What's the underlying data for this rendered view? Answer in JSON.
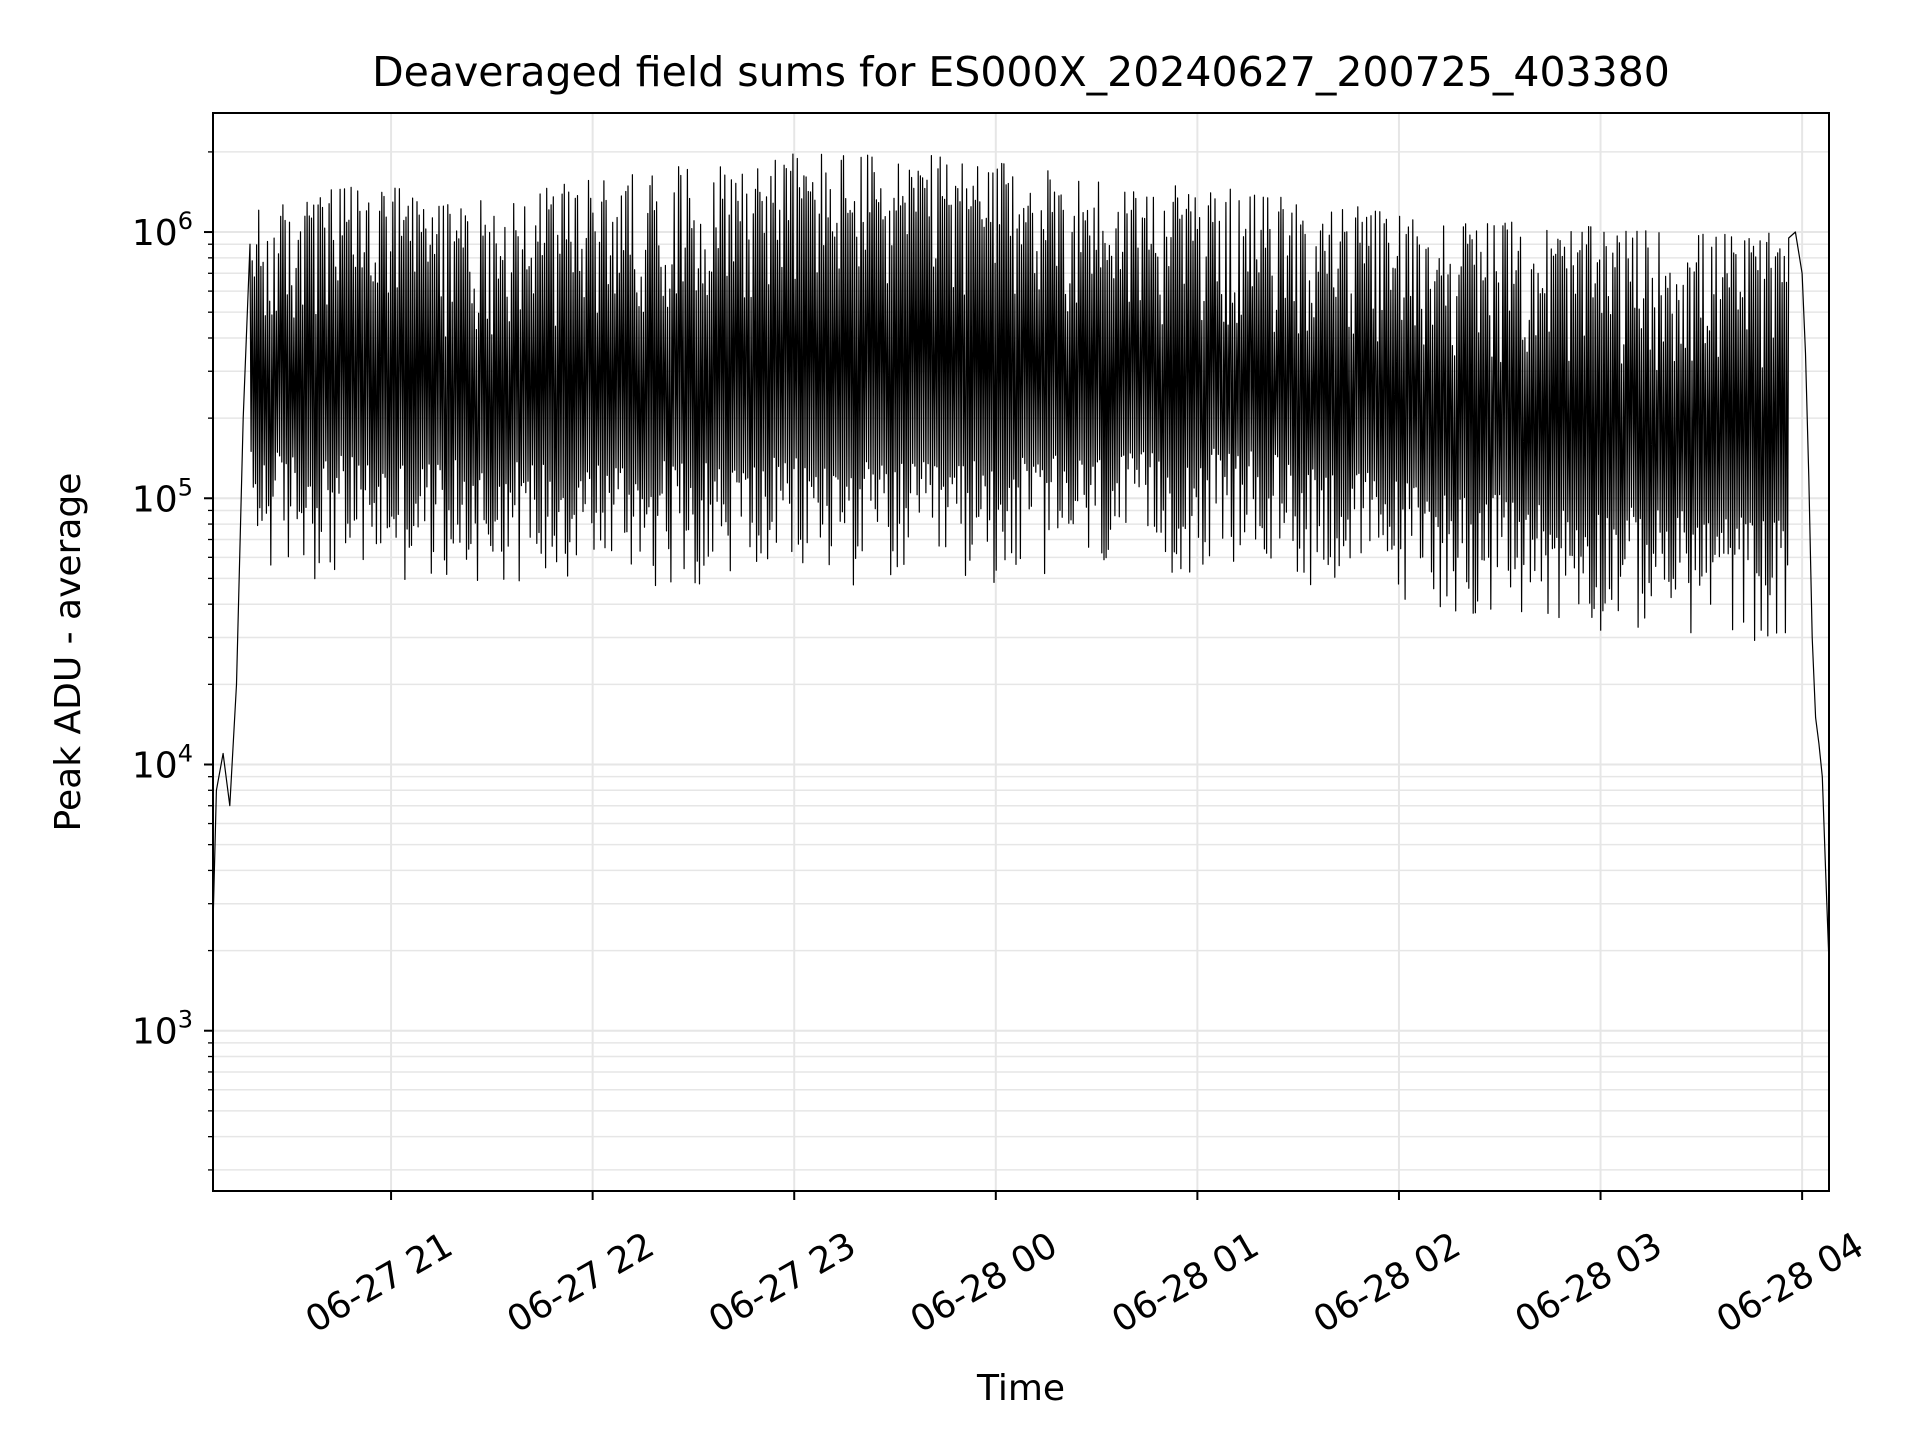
{
  "chart_data": {
    "type": "line",
    "title": "Deaveraged field sums for ES000X_20240627_200725_403380",
    "xlabel": "Time",
    "ylabel": "Peak ADU - average",
    "yscale": "log",
    "ylim": [
      250,
      2800000
    ],
    "xlim": [
      "2024-06-27 20:07",
      "2024-06-28 04:08"
    ],
    "grid": true,
    "line_color": "#000000",
    "grid_color": "#e6e6e6",
    "x_ticks": [
      {
        "time": "2024-06-27 21:00",
        "label": "06-27 21"
      },
      {
        "time": "2024-06-27 22:00",
        "label": "06-27 22"
      },
      {
        "time": "2024-06-27 23:00",
        "label": "06-27 23"
      },
      {
        "time": "2024-06-28 00:00",
        "label": "06-28 00"
      },
      {
        "time": "2024-06-28 01:00",
        "label": "06-28 01"
      },
      {
        "time": "2024-06-28 02:00",
        "label": "06-28 02"
      },
      {
        "time": "2024-06-28 03:00",
        "label": "06-28 03"
      },
      {
        "time": "2024-06-28 04:00",
        "label": "06-28 04"
      }
    ],
    "y_ticks": [
      {
        "value": 1000,
        "base": "10",
        "exp": "3"
      },
      {
        "value": 10000,
        "base": "10",
        "exp": "4"
      },
      {
        "value": 100000,
        "base": "10",
        "exp": "5"
      },
      {
        "value": 1000000,
        "base": "10",
        "exp": "6"
      }
    ],
    "series": [
      {
        "x": [
          "2024-06-27 20:07",
          "2024-06-27 20:08",
          "2024-06-27 20:10",
          "2024-06-27 20:12",
          "2024-06-27 20:14",
          "2024-06-27 20:16",
          "2024-06-27 20:18",
          "2024-06-27 20:20",
          "2024-06-27 20:22",
          "2024-06-27 20:24",
          "2024-06-27 20:27",
          "2024-06-27 20:30",
          "2024-06-27 20:34",
          "2024-06-27 20:38",
          "2024-06-27 20:42",
          "2024-06-27 20:48",
          "2024-06-27 20:55",
          "2024-06-27 21:05",
          "2024-06-27 21:15",
          "2024-06-27 21:25",
          "2024-06-27 21:35",
          "2024-06-27 21:45",
          "2024-06-27 22:00",
          "2024-06-27 22:15",
          "2024-06-27 22:30",
          "2024-06-27 22:45",
          "2024-06-27 23:00",
          "2024-06-27 23:15",
          "2024-06-27 23:30",
          "2024-06-27 23:45",
          "2024-06-28 00:00",
          "2024-06-28 00:15",
          "2024-06-28 00:30",
          "2024-06-28 00:45",
          "2024-06-28 01:00",
          "2024-06-28 01:15",
          "2024-06-28 01:30",
          "2024-06-28 01:45",
          "2024-06-28 02:00",
          "2024-06-28 02:15",
          "2024-06-28 02:30",
          "2024-06-28 02:45",
          "2024-06-28 03:00",
          "2024-06-28 03:15",
          "2024-06-28 03:30",
          "2024-06-28 03:40",
          "2024-06-28 03:48",
          "2024-06-28 03:52",
          "2024-06-28 03:54",
          "2024-06-28 03:56",
          "2024-06-28 03:58",
          "2024-06-28 04:00",
          "2024-06-28 04:01",
          "2024-06-28 04:02",
          "2024-06-28 04:03",
          "2024-06-28 04:04",
          "2024-06-28 04:05",
          "2024-06-28 04:06",
          "2024-06-28 04:07",
          "2024-06-28 04:08"
        ],
        "y": [
          2500,
          8000,
          11000,
          7000,
          20000,
          200000,
          900000,
          1100000,
          950000,
          800000,
          700000,
          750000,
          900000,
          850000,
          700000,
          500000,
          200000,
          90000,
          80000,
          75000,
          80000,
          70000,
          85000,
          120000,
          100000,
          90000,
          110000,
          130000,
          150000,
          180000,
          170000,
          200000,
          180000,
          190000,
          170000,
          160000,
          140000,
          120000,
          110000,
          100000,
          90000,
          85000,
          80000,
          90000,
          110000,
          150000,
          300000,
          550000,
          800000,
          950000,
          1000000,
          700000,
          350000,
          120000,
          30000,
          15000,
          12000,
          9000,
          4000,
          1800
        ]
      }
    ],
    "upper_envelope": [
      1000000,
      1300000,
      1100000,
      1300000,
      1500000,
      1700000,
      1650000,
      1500000,
      1300000,
      1200000,
      1050000,
      950000,
      880000,
      850000,
      820000
    ],
    "lower_envelope": [
      65000,
      60000,
      58000,
      60000,
      58000,
      60000,
      57000,
      60000,
      62000,
      65000,
      55000,
      45000,
      40000,
      38000,
      35000
    ]
  }
}
